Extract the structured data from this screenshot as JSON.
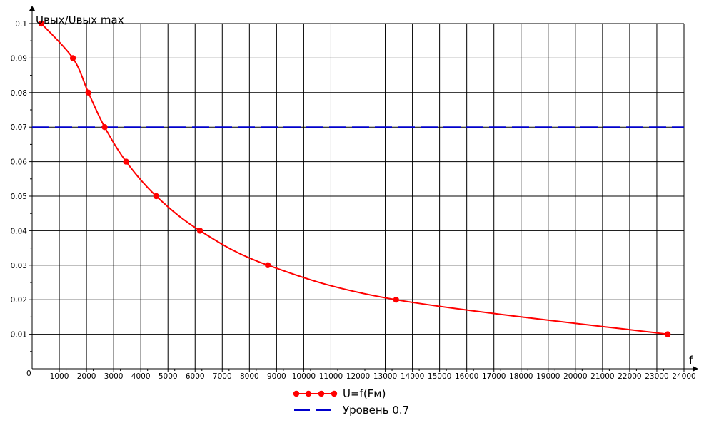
{
  "chart_data": {
    "type": "line",
    "title": "",
    "xlabel": "f",
    "ylabel": "Uвых/Uвых max",
    "origin_label": "0",
    "xlim": [
      0,
      24000
    ],
    "ylim": [
      0,
      0.1
    ],
    "x_ticks": [
      1000,
      2000,
      3000,
      4000,
      5000,
      6000,
      7000,
      8000,
      9000,
      10000,
      11000,
      12000,
      13000,
      14000,
      15000,
      16000,
      17000,
      18000,
      19000,
      20000,
      21000,
      22000,
      23000,
      24000
    ],
    "y_ticks": [
      0.01,
      0.02,
      0.03,
      0.04,
      0.05,
      0.06,
      0.07,
      0.08,
      0.09,
      0.1
    ],
    "grid": true,
    "legend_position": "bottom",
    "series": [
      {
        "name": "U=f(Fм)",
        "color": "#ff0000",
        "marker": "circle",
        "x": [
          340,
          1500,
          2070,
          2670,
          3460,
          4570,
          6180,
          8680,
          13400,
          23400
        ],
        "y": [
          0.1,
          0.09,
          0.08,
          0.07,
          0.06,
          0.05,
          0.04,
          0.03,
          0.02,
          0.01
        ]
      },
      {
        "name": "Уровень 0.7",
        "color": "#0000cc",
        "style": "dashed",
        "x": [
          0,
          24000
        ],
        "y": [
          0.07,
          0.07
        ]
      }
    ]
  }
}
